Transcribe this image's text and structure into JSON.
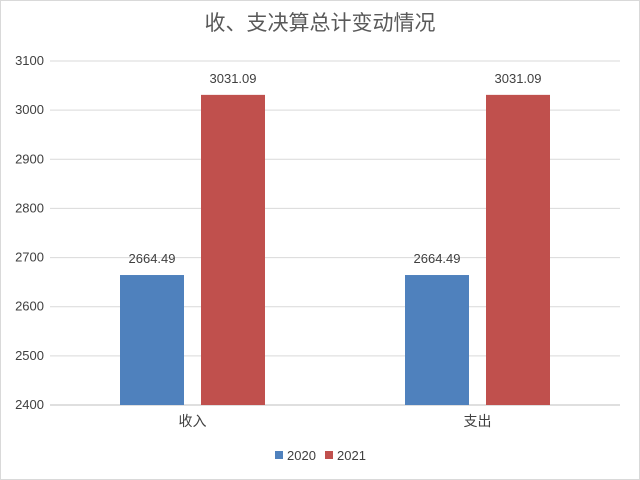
{
  "chart_data": {
    "type": "bar",
    "title": "收、支决算总计变动情况",
    "categories": [
      "收入",
      "支出"
    ],
    "series": [
      {
        "name": "2020",
        "values": [
          2664.49,
          2664.49
        ],
        "color": "#4f81bd"
      },
      {
        "name": "2021",
        "values": [
          3031.09,
          3031.09
        ],
        "color": "#c0504d"
      }
    ],
    "data_labels": [
      [
        "2664.49",
        "2664.49"
      ],
      [
        "3031.09",
        "3031.09"
      ]
    ],
    "ylim": [
      2400,
      3100
    ],
    "yticks": [
      "2400",
      "2500",
      "2600",
      "2700",
      "2800",
      "2900",
      "3000",
      "3100"
    ],
    "grid": true,
    "legend_position": "bottom"
  }
}
